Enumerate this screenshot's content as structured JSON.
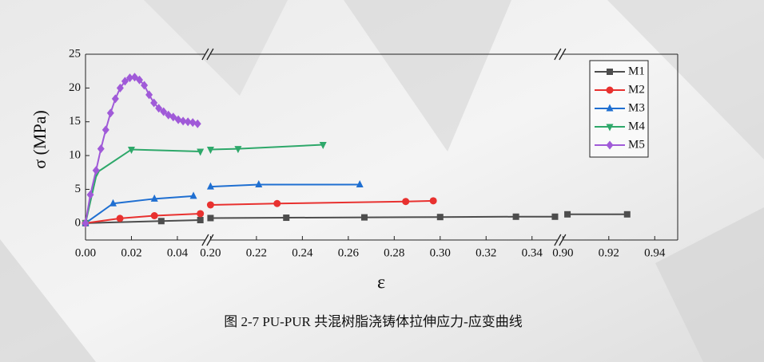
{
  "chart_data": {
    "type": "line",
    "caption": "图 2-7 PU-PUR 共混树脂浇铸体拉伸应力-应变曲线",
    "xlabel": "ε",
    "ylabel": "σ (MPa)",
    "ylim": [
      -2.5,
      25
    ],
    "yticks": [
      0,
      5,
      10,
      15,
      20,
      25
    ],
    "x_segments": [
      {
        "xlim": [
          0,
          0.052
        ],
        "xticks": [
          {
            "value": 0,
            "label": "0.00"
          },
          {
            "value": 0.02,
            "label": "0.02"
          },
          {
            "value": 0.04,
            "label": "0.04"
          }
        ]
      },
      {
        "xlim": [
          0.2,
          0.351
        ],
        "xticks": [
          {
            "value": 0.2,
            "label": "0.20"
          },
          {
            "value": 0.22,
            "label": "0.22"
          },
          {
            "value": 0.24,
            "label": "0.24"
          },
          {
            "value": 0.26,
            "label": "0.26"
          },
          {
            "value": 0.28,
            "label": "0.28"
          },
          {
            "value": 0.3,
            "label": "0.30"
          },
          {
            "value": 0.32,
            "label": "0.32"
          },
          {
            "value": 0.34,
            "label": "0.34"
          }
        ]
      },
      {
        "xlim": [
          0.9,
          0.95
        ],
        "xticks": [
          {
            "value": 0.9,
            "label": "0.90"
          },
          {
            "value": 0.92,
            "label": "0.92"
          },
          {
            "value": 0.94,
            "label": "0.94"
          }
        ]
      }
    ],
    "legend": "upper right",
    "series": [
      {
        "name": "M1",
        "color": "#4d4d4d",
        "marker": "square",
        "x": [
          0,
          0.033,
          0.05,
          0.2,
          0.233,
          0.267,
          0.3,
          0.333,
          0.35,
          0.902,
          0.928
        ],
        "values": [
          0,
          0.3,
          0.45,
          0.75,
          0.8,
          0.85,
          0.9,
          0.95,
          0.95,
          1.3,
          1.3
        ]
      },
      {
        "name": "M2",
        "color": "#e8312f",
        "marker": "circle",
        "x": [
          0,
          0.015,
          0.03,
          0.05,
          0.2,
          0.229,
          0.285,
          0.297
        ],
        "values": [
          0,
          0.7,
          1.1,
          1.4,
          2.7,
          2.9,
          3.2,
          3.3
        ]
      },
      {
        "name": "M3",
        "color": "#1f6fd1",
        "marker": "triangle-up",
        "x": [
          0,
          0.012,
          0.03,
          0.047,
          0.2,
          0.221,
          0.265
        ],
        "values": [
          0,
          2.9,
          3.6,
          4.0,
          5.4,
          5.7,
          5.7
        ]
      },
      {
        "name": "M4",
        "color": "#2ea86a",
        "marker": "triangle-down",
        "x": [
          0,
          0.005,
          0.02,
          0.05,
          0.2,
          0.212,
          0.249
        ],
        "values": [
          0,
          7.5,
          10.9,
          10.6,
          10.9,
          11.0,
          11.6
        ]
      },
      {
        "name": "M5",
        "color": "#a05ad8",
        "marker": "diamond",
        "x": [
          0,
          0.0021,
          0.0046,
          0.0067,
          0.0088,
          0.0109,
          0.013,
          0.0151,
          0.0172,
          0.0193,
          0.0214,
          0.0235,
          0.0256,
          0.0277,
          0.0298,
          0.0319,
          0.034,
          0.0361,
          0.0382,
          0.0404,
          0.0425,
          0.0446,
          0.0467,
          0.0488
        ],
        "values": [
          0,
          4.2,
          7.8,
          11,
          13.8,
          16.3,
          18.4,
          20,
          21,
          21.5,
          21.6,
          21.2,
          20.4,
          19,
          17.8,
          17,
          16.5,
          16,
          15.7,
          15.3,
          15.1,
          15.0,
          14.9,
          14.7
        ]
      }
    ]
  }
}
